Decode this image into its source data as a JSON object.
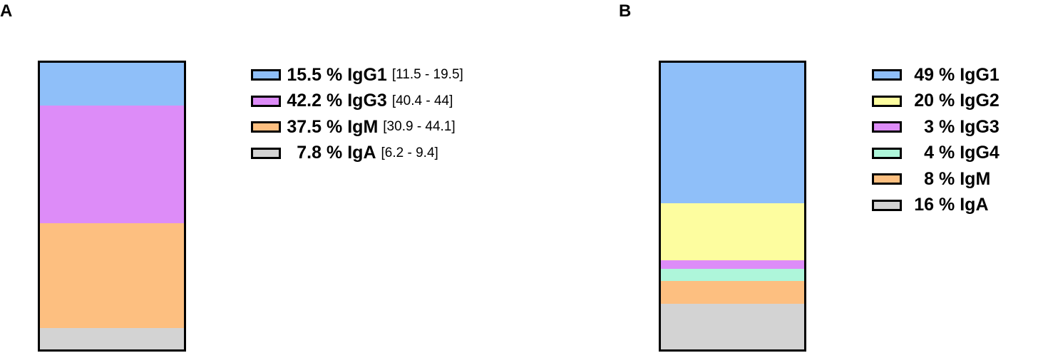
{
  "chart_data": [
    {
      "type": "bar",
      "panel": "A",
      "stacked": true,
      "categories": [
        "IgG1",
        "IgG3",
        "IgM",
        "IgA"
      ],
      "values": [
        15.5,
        42.2,
        37.5,
        7.8
      ],
      "ranges": [
        "[11.5 - 19.5]",
        "[40.4 - 44]",
        "[30.9 - 44.1]",
        "[6.2 - 9.4]"
      ],
      "colors": [
        "#8fbff9",
        "#dd8cf8",
        "#fdbf80",
        "#d3d3d3"
      ],
      "legend": "right",
      "grid": false
    },
    {
      "type": "bar",
      "panel": "B",
      "stacked": true,
      "categories": [
        "IgG1",
        "IgG2",
        "IgG3",
        "IgG4",
        "IgM",
        "IgA"
      ],
      "values": [
        49,
        20,
        3,
        4,
        8,
        16
      ],
      "colors": [
        "#8fbff9",
        "#fdfd9f",
        "#dd8cf8",
        "#aef6da",
        "#fdbf80",
        "#d3d3d3"
      ],
      "legend": "right",
      "grid": false
    }
  ]
}
